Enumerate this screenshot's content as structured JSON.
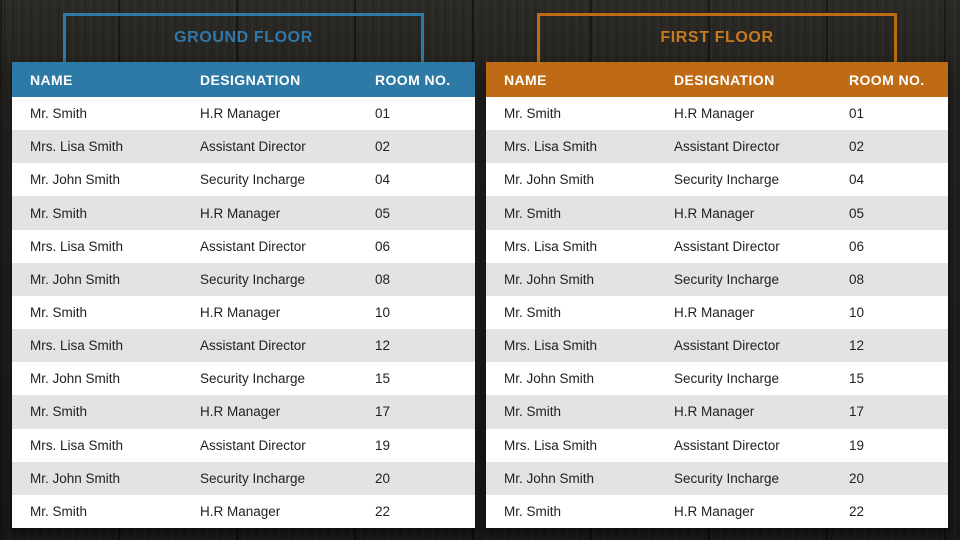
{
  "colors": {
    "ground_accent": "#2e7aa6",
    "ground_title": "#3279ab",
    "first_accent": "#bf6b15",
    "first_title": "#c87a1e",
    "row_alt": "#e3e3e3",
    "row_text": "#212121",
    "header_text": "#ffffff",
    "background": "#201f1c"
  },
  "chart_data": [
    {
      "type": "table",
      "title": "GROUND FLOOR",
      "accent": "#2e7aa6",
      "title_color": "#3279ab",
      "columns": [
        "NAME",
        "DESIGNATION",
        "ROOM NO."
      ],
      "rows": [
        [
          "Mr. Smith",
          "H.R Manager",
          "01"
        ],
        [
          "Mrs. Lisa Smith",
          "Assistant Director",
          "02"
        ],
        [
          "Mr. John Smith",
          "Security Incharge",
          "04"
        ],
        [
          "Mr. Smith",
          "H.R Manager",
          "05"
        ],
        [
          "Mrs. Lisa Smith",
          "Assistant Director",
          "06"
        ],
        [
          "Mr. John Smith",
          "Security Incharge",
          "08"
        ],
        [
          "Mr. Smith",
          "H.R Manager",
          "10"
        ],
        [
          "Mrs. Lisa Smith",
          "Assistant Director",
          "12"
        ],
        [
          "Mr. John Smith",
          "Security Incharge",
          "15"
        ],
        [
          "Mr. Smith",
          "H.R Manager",
          "17"
        ],
        [
          "Mrs. Lisa Smith",
          "Assistant Director",
          "19"
        ],
        [
          "Mr. John Smith",
          "Security Incharge",
          "20"
        ],
        [
          "Mr. Smith",
          "H.R Manager",
          "22"
        ]
      ]
    },
    {
      "type": "table",
      "title": "FIRST FLOOR",
      "accent": "#bf6b15",
      "title_color": "#c87a1e",
      "columns": [
        "NAME",
        "DESIGNATION",
        "ROOM NO."
      ],
      "rows": [
        [
          "Mr. Smith",
          "H.R Manager",
          "01"
        ],
        [
          "Mrs. Lisa Smith",
          "Assistant Director",
          "02"
        ],
        [
          "Mr. John Smith",
          "Security Incharge",
          "04"
        ],
        [
          "Mr. Smith",
          "H.R Manager",
          "05"
        ],
        [
          "Mrs. Lisa Smith",
          "Assistant Director",
          "06"
        ],
        [
          "Mr. John Smith",
          "Security Incharge",
          "08"
        ],
        [
          "Mr. Smith",
          "H.R Manager",
          "10"
        ],
        [
          "Mrs. Lisa Smith",
          "Assistant Director",
          "12"
        ],
        [
          "Mr. John Smith",
          "Security Incharge",
          "15"
        ],
        [
          "Mr. Smith",
          "H.R Manager",
          "17"
        ],
        [
          "Mrs. Lisa Smith",
          "Assistant Director",
          "19"
        ],
        [
          "Mr. John Smith",
          "Security Incharge",
          "20"
        ],
        [
          "Mr. Smith",
          "H.R Manager",
          "22"
        ]
      ]
    }
  ]
}
